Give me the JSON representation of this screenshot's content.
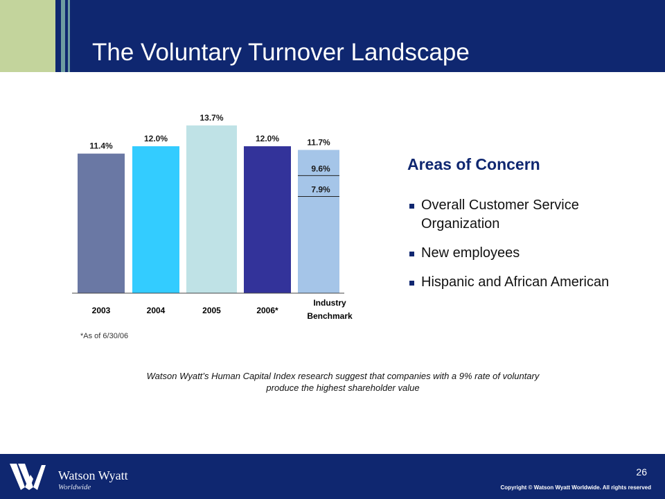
{
  "slide": {
    "title": "The Voluntary Turnover Landscape",
    "footnote": "*As of 6/30/06",
    "note_line1": "Watson Wyatt’s Human Capital Index research suggest that companies with a 9% rate of voluntary",
    "note_line2": "produce the highest shareholder value"
  },
  "concerns": {
    "title": "Areas of Concern",
    "items": [
      "Overall Customer Service Organization",
      "New employees",
      "Hispanic and African American"
    ]
  },
  "footer": {
    "company": "Watson Wyatt",
    "company_sub": "Worldwide",
    "page_number": "26",
    "copyright": "Copyright © Watson Wyatt Worldwide. All rights reserved"
  },
  "colors": {
    "header": "#0f2770",
    "accent_green": "#c3d49c",
    "accent_teal": "#6e9da0"
  },
  "chart_data": {
    "type": "bar",
    "categories": [
      "2003",
      "2004",
      "2005",
      "2006*",
      "Industry Benchmark"
    ],
    "values": [
      11.4,
      12.0,
      13.7,
      12.0,
      11.7
    ],
    "value_labels": [
      "11.4%",
      "12.0%",
      "13.7%",
      "12.0%",
      "11.7%"
    ],
    "colors": [
      "#6a78a4",
      "#33ccff",
      "#bfe2e6",
      "#33339a",
      "#a5c5e8"
    ],
    "benchmark_markers": [
      {
        "value": 9.6,
        "label": "9.6%"
      },
      {
        "value": 7.9,
        "label": "7.9%"
      }
    ],
    "ylim": [
      0,
      13.7
    ],
    "title": "",
    "xlabel": "",
    "ylabel": ""
  }
}
